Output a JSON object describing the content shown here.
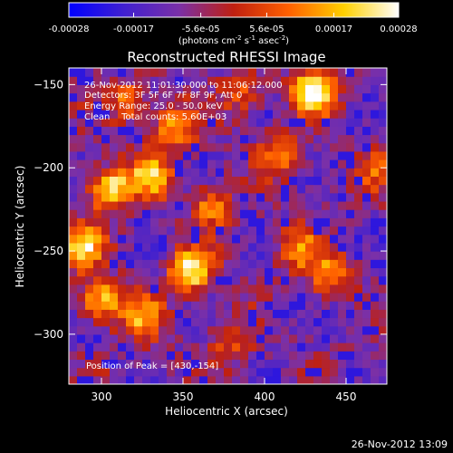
{
  "chart_data": {
    "type": "heatmap",
    "title": "Reconstructed RHESSI Image",
    "xlabel": "Heliocentric X (arcsec)",
    "ylabel": "Heliocentric Y (arcsec)",
    "xlim": [
      280,
      475
    ],
    "ylim": [
      -330,
      -140
    ],
    "xticks": [
      300,
      350,
      400,
      450
    ],
    "yticks": [
      -150,
      -200,
      -250,
      -300
    ],
    "colorbar": {
      "ticks": [
        "-0.00028",
        "-0.00017",
        "-5.6e-05",
        "5.6e-05",
        "0.00017",
        "0.00028"
      ],
      "tick_values": [
        -0.00028,
        -0.00017,
        -5.6e-05,
        5.6e-05,
        0.00017,
        0.00028
      ],
      "range": [
        -0.00028,
        0.00028
      ],
      "unit_parts": [
        "(photons cm",
        "-2",
        " s",
        "-1",
        " asec",
        "-2",
        ")"
      ],
      "colors": [
        "#0000ff",
        "#4020d0",
        "#7a30a8",
        "#c02010",
        "#ff6000",
        "#ffd000",
        "#ffffff"
      ]
    },
    "annotations": [
      "26-Nov-2012 11:01:30.000 to 11:06:12.000",
      "Detectors: 3F 5F 6F 7F 8F 9F, Att 0",
      "Energy Range: 25.0 - 50.0 keV",
      "Clean    Total counts: 5.60E+03"
    ],
    "peak_label": "Position of Peak = [430,-154]",
    "peak": [
      430,
      -154
    ],
    "sources": [
      {
        "x": 430,
        "y": -154,
        "amp": 1.0
      },
      {
        "x": 355,
        "y": -262,
        "amp": 0.95
      },
      {
        "x": 305,
        "y": -212,
        "amp": 0.92
      },
      {
        "x": 288,
        "y": -248,
        "amp": 0.8
      },
      {
        "x": 300,
        "y": -280,
        "amp": 0.8
      },
      {
        "x": 330,
        "y": -205,
        "amp": 0.72
      },
      {
        "x": 345,
        "y": -175,
        "amp": 0.65
      },
      {
        "x": 318,
        "y": -160,
        "amp": 0.55
      },
      {
        "x": 368,
        "y": -222,
        "amp": 0.55
      },
      {
        "x": 440,
        "y": -265,
        "amp": 0.6
      },
      {
        "x": 420,
        "y": -248,
        "amp": 0.55
      },
      {
        "x": 410,
        "y": -190,
        "amp": 0.5
      },
      {
        "x": 388,
        "y": -155,
        "amp": 0.45
      },
      {
        "x": 380,
        "y": -305,
        "amp": 0.35
      },
      {
        "x": 325,
        "y": -290,
        "amp": 0.6
      },
      {
        "x": 470,
        "y": -200,
        "amp": 0.4
      }
    ]
  },
  "footer": {
    "timestamp": "26-Nov-2012 13:09"
  }
}
